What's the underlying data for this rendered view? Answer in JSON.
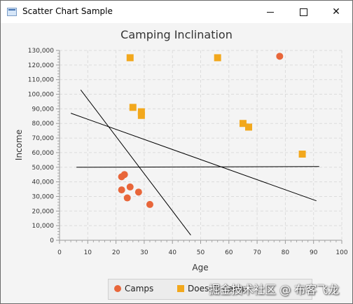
{
  "window": {
    "title": "Scatter Chart Sample",
    "icons": [
      "app-icon",
      "minimize-icon",
      "maximize-icon",
      "close-icon"
    ]
  },
  "chart_data": {
    "type": "scatter",
    "title": "Camping Inclination",
    "xlabel": "Age",
    "ylabel": "Income",
    "xlim": [
      0,
      100
    ],
    "ylim": [
      0,
      130000
    ],
    "x_ticks": [
      "0",
      "10",
      "20",
      "30",
      "40",
      "50",
      "60",
      "70",
      "80",
      "90",
      "100"
    ],
    "y_ticks": [
      "0",
      "10,000",
      "20,000",
      "30,000",
      "40,000",
      "50,000",
      "60,000",
      "70,000",
      "80,000",
      "90,000",
      "100,000",
      "110,000",
      "120,000",
      "130,000"
    ],
    "grid": true,
    "legend_position": "bottom",
    "series": [
      {
        "name": "Camps",
        "marker": "circle",
        "color": "#e8663a",
        "points": [
          {
            "x": 78,
            "y": 126000
          },
          {
            "x": 23,
            "y": 45000
          },
          {
            "x": 22,
            "y": 43500
          },
          {
            "x": 22,
            "y": 34500
          },
          {
            "x": 25,
            "y": 36500
          },
          {
            "x": 28,
            "y": 33000
          },
          {
            "x": 24,
            "y": 29000
          },
          {
            "x": 32,
            "y": 24500
          }
        ]
      },
      {
        "name": "Doesn't Camp",
        "marker": "square",
        "color": "#f2a81d",
        "points": [
          {
            "x": 25,
            "y": 125000
          },
          {
            "x": 56,
            "y": 125000
          },
          {
            "x": 26,
            "y": 91000
          },
          {
            "x": 29,
            "y": 88000
          },
          {
            "x": 29,
            "y": 85500
          },
          {
            "x": 65,
            "y": 80000
          },
          {
            "x": 67,
            "y": 77500
          },
          {
            "x": 86,
            "y": 59000
          }
        ]
      }
    ],
    "lines": [
      {
        "x1": 7.5,
        "y1": 103000,
        "x2": 46.5,
        "y2": 3500
      },
      {
        "x1": 4,
        "y1": 87000,
        "x2": 91,
        "y2": 27000
      },
      {
        "x1": 6,
        "y1": 50000,
        "x2": 92,
        "y2": 50500
      }
    ]
  },
  "watermark": "掘金技术社区 @ 布客飞龙"
}
